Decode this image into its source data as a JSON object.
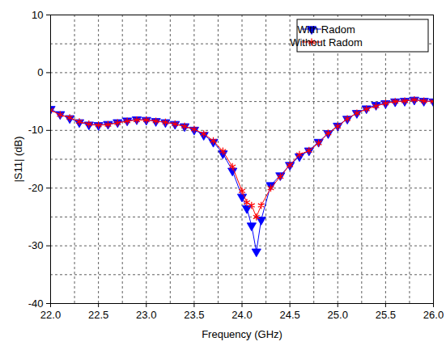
{
  "chart_data": {
    "type": "line",
    "x_label": "Frequency (GHz)",
    "y_label": "|S11| (dB)",
    "xlim": [
      22,
      26
    ],
    "ylim": [
      -40,
      10
    ],
    "xticks": [
      {
        "value": 22,
        "label": "22.0"
      },
      {
        "value": 22.5,
        "label": "22.5"
      },
      {
        "value": 23,
        "label": "23.0"
      },
      {
        "value": 23.5,
        "label": "23.5"
      },
      {
        "value": 24,
        "label": "24.0"
      },
      {
        "value": 24.5,
        "label": "24.5"
      },
      {
        "value": 25,
        "label": "25.0"
      },
      {
        "value": 25.5,
        "label": "25.5"
      },
      {
        "value": 26,
        "label": "26.0"
      }
    ],
    "yticks": [
      -40,
      -30,
      -20,
      -10,
      0,
      10
    ],
    "grid": true,
    "legend": "top-right",
    "x": [
      22.0,
      22.1,
      22.2,
      22.3,
      22.4,
      22.5,
      22.6,
      22.7,
      22.8,
      22.9,
      23.0,
      23.1,
      23.2,
      23.3,
      23.4,
      23.5,
      23.6,
      23.7,
      23.8,
      23.9,
      24.0,
      24.05,
      24.1,
      24.15,
      24.2,
      24.3,
      24.4,
      24.5,
      24.6,
      24.7,
      24.8,
      24.9,
      25.0,
      25.1,
      25.2,
      25.3,
      25.4,
      25.5,
      25.6,
      25.7,
      25.8,
      25.9,
      26.0
    ],
    "series": [
      {
        "name": "With Radom",
        "color": "#0000ff",
        "marker": "triangle-down",
        "line_style": "solid",
        "values": [
          -6.3,
          -7.2,
          -7.9,
          -8.6,
          -9.0,
          -9.1,
          -8.9,
          -8.6,
          -8.3,
          -8.1,
          -8.2,
          -8.4,
          -8.6,
          -8.9,
          -9.3,
          -9.9,
          -10.8,
          -12.0,
          -14.0,
          -17.0,
          -21.5,
          -23.5,
          -26.5,
          -31.0,
          -25.5,
          -19.5,
          -17.8,
          -16.0,
          -14.5,
          -13.5,
          -12.0,
          -10.5,
          -9.2,
          -8.0,
          -7.0,
          -6.2,
          -5.6,
          -5.3,
          -5.0,
          -4.9,
          -4.7,
          -4.9,
          -5.0
        ]
      },
      {
        "name": "Without Radom",
        "color": "#ff0000",
        "marker": "asterisk",
        "line_style": "solid",
        "values": [
          -6.5,
          -7.3,
          -7.8,
          -8.5,
          -8.9,
          -9.1,
          -9.0,
          -8.7,
          -8.4,
          -8.2,
          -8.2,
          -8.4,
          -8.6,
          -8.9,
          -9.3,
          -9.8,
          -10.6,
          -11.8,
          -13.6,
          -16.3,
          -20.5,
          -22.5,
          -23.0,
          -25.0,
          -23.0,
          -20.0,
          -18.0,
          -16.0,
          -14.2,
          -13.5,
          -12.2,
          -10.5,
          -9.3,
          -8.0,
          -7.0,
          -6.3,
          -5.8,
          -5.3,
          -5.0,
          -4.9,
          -4.7,
          -4.9,
          -5.0
        ]
      }
    ]
  }
}
